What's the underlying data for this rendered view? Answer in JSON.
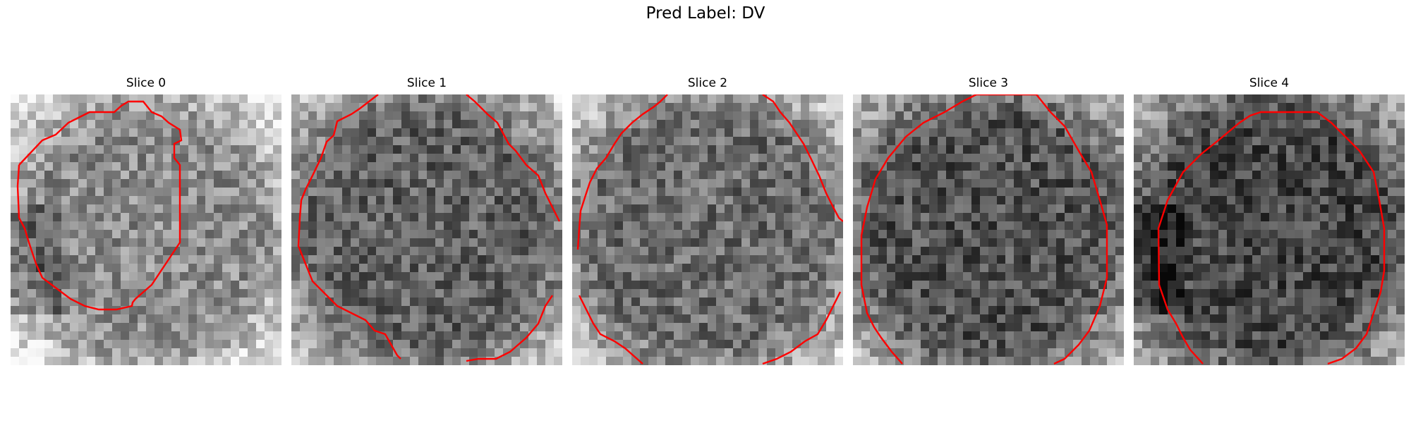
{
  "figure": {
    "suptitle": "Pred Label: DV"
  },
  "panels": [
    {
      "title": "Slice 0",
      "bright": 0.55,
      "dark_edges": "left"
    },
    {
      "title": "Slice 1",
      "bright": 0.38,
      "dark_edges": "none"
    },
    {
      "title": "Slice 2",
      "bright": 0.42,
      "dark_edges": "none"
    },
    {
      "title": "Slice 3",
      "bright": 0.32,
      "dark_edges": "none"
    },
    {
      "title": "Slice 4",
      "bright": 0.28,
      "dark_edges": "left"
    }
  ],
  "contour_color": "#ff0000"
}
